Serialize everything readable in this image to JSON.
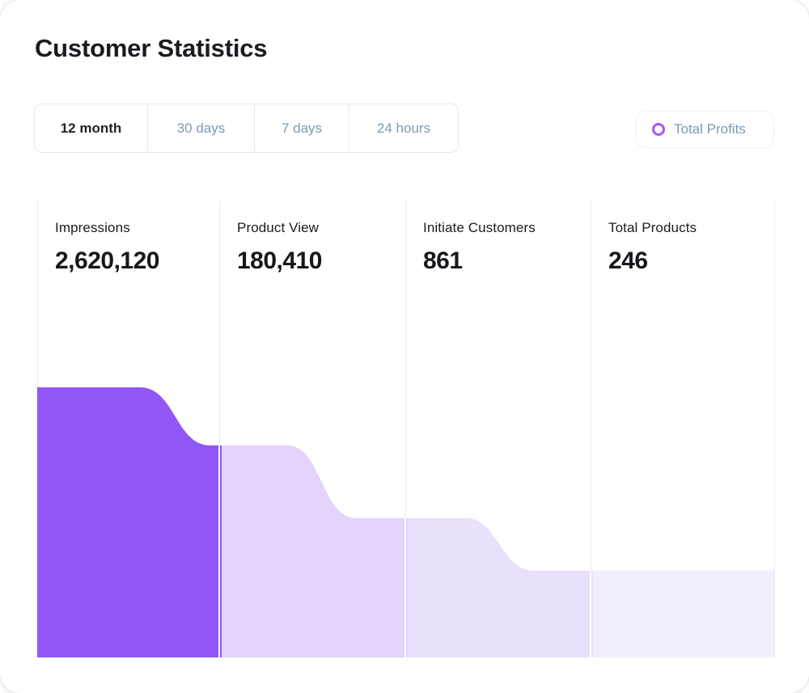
{
  "header": {
    "title": "Customer Statistics"
  },
  "tabs": {
    "items": [
      {
        "label": "12 month",
        "active": true
      },
      {
        "label": "30 days",
        "active": false
      },
      {
        "label": "7 days",
        "active": false
      },
      {
        "label": "24 hours",
        "active": false
      }
    ]
  },
  "legend": {
    "label": "Total Profits",
    "icon": "ring-icon",
    "icon_color": "#a55cf6",
    "text_color": "#7e99b5"
  },
  "chart_data": {
    "type": "area",
    "subtype": "stepped-funnel",
    "title": "Customer Statistics",
    "period_selected": "12 month",
    "legend": [
      "Total Profits"
    ],
    "legend_position": "top-right",
    "grid": "vertical-lines-only",
    "grid_color": "#edeef3",
    "separator_color": "#ffffff",
    "stages": [
      {
        "label": "Impressions",
        "value": 2620120,
        "value_display": "2,620,120",
        "color": "#9156f6",
        "height_frac": 1.0
      },
      {
        "label": "Product View",
        "value": 180410,
        "value_display": "180,410",
        "color": "#e3d4fc",
        "height_frac": 0.785
      },
      {
        "label": "Initiate Customers",
        "value": 861,
        "value_display": "861",
        "color": "#eae0fb",
        "height_frac": 0.516
      },
      {
        "label": "Total Products",
        "value": 246,
        "value_display": "246",
        "color": "#f2eefb",
        "height_frac": 0.322
      }
    ]
  }
}
